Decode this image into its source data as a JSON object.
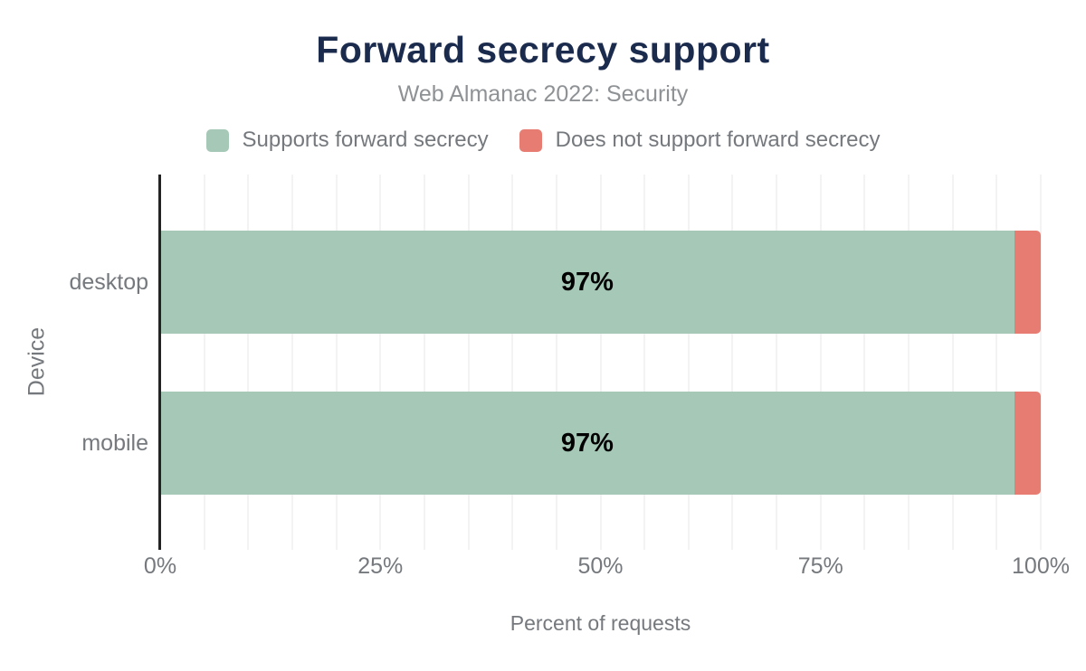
{
  "title": "Forward secrecy support",
  "subtitle": "Web Almanac 2022: Security",
  "legend": [
    {
      "label": "Supports forward secrecy",
      "color": "#a6c8b7"
    },
    {
      "label": "Does not support forward secrecy",
      "color": "#e67c72"
    }
  ],
  "chart_data": {
    "type": "bar",
    "orientation": "horizontal",
    "stacked": true,
    "title": "Forward secrecy support",
    "subtitle": "Web Almanac 2022: Security",
    "categories": [
      "desktop",
      "mobile"
    ],
    "series": [
      {
        "name": "Supports forward secrecy",
        "color": "#a6c8b7",
        "values": [
          97,
          97
        ]
      },
      {
        "name": "Does not support forward secrecy",
        "color": "#e67c72",
        "values": [
          3,
          3
        ]
      }
    ],
    "bar_labels": [
      "97%",
      "97%"
    ],
    "xlabel": "Percent of requests",
    "ylabel": "Device",
    "xlim": [
      0,
      100
    ],
    "x_ticks": [
      "0%",
      "25%",
      "50%",
      "75%",
      "100%"
    ],
    "x_tick_values": [
      0,
      25,
      50,
      75,
      100
    ],
    "grid": true,
    "grid_step_percent": 5,
    "legend_position": "top"
  },
  "colors": {
    "title_text": "#1b2b4d",
    "subtitle_text": "#8f9295",
    "axis_text": "#75797d",
    "bar_label_text": "#000000",
    "gridline": "#f3f3f3",
    "axis_line": "#232323"
  }
}
